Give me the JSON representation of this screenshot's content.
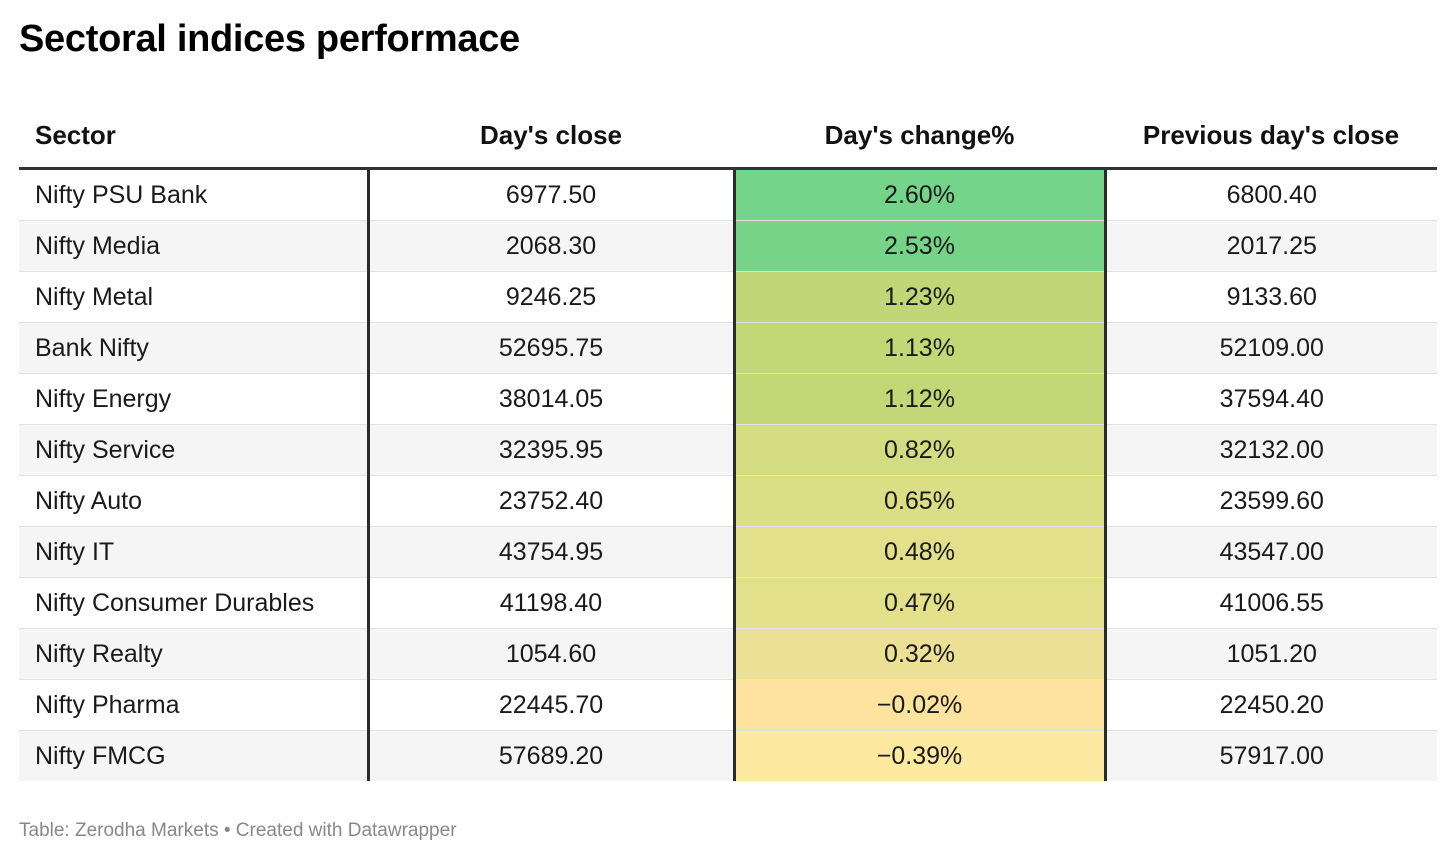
{
  "title": "Sectoral indices performace",
  "headers": [
    "Sector",
    "Day's close",
    "Day's change%",
    "Previous day's close"
  ],
  "chart_data": {
    "type": "table",
    "columns": [
      "Sector",
      "Day's close",
      "Day's change%",
      "Previous day's close"
    ],
    "rows": [
      {
        "sector": "Nifty PSU Bank",
        "close": "6977.50",
        "change": "2.60%",
        "change_value": 2.6,
        "prev": "6800.40",
        "color": "#74d48a"
      },
      {
        "sector": "Nifty Media",
        "close": "2068.30",
        "change": "2.53%",
        "change_value": 2.53,
        "prev": "2017.25",
        "color": "#76d489"
      },
      {
        "sector": "Nifty Metal",
        "close": "9246.25",
        "change": "1.23%",
        "change_value": 1.23,
        "prev": "9133.60",
        "color": "#bfd776"
      },
      {
        "sector": "Bank Nifty",
        "close": "52695.75",
        "change": "1.13%",
        "change_value": 1.13,
        "prev": "52109.00",
        "color": "#c1d877"
      },
      {
        "sector": "Nifty Energy",
        "close": "38014.05",
        "change": "1.12%",
        "change_value": 1.12,
        "prev": "37594.40",
        "color": "#c2d877"
      },
      {
        "sector": "Nifty Service",
        "close": "32395.95",
        "change": "0.82%",
        "change_value": 0.82,
        "prev": "32132.00",
        "color": "#d3dc80"
      },
      {
        "sector": "Nifty Auto",
        "close": "23752.40",
        "change": "0.65%",
        "change_value": 0.65,
        "prev": "23599.60",
        "color": "#dcde86"
      },
      {
        "sector": "Nifty IT",
        "close": "43754.95",
        "change": "0.48%",
        "change_value": 0.48,
        "prev": "43547.00",
        "color": "#e3e08b"
      },
      {
        "sector": "Nifty Consumer Durables",
        "close": "41198.40",
        "change": "0.47%",
        "change_value": 0.47,
        "prev": "41006.55",
        "color": "#e3e08c"
      },
      {
        "sector": "Nifty Realty",
        "close": "1054.60",
        "change": "0.32%",
        "change_value": 0.32,
        "prev": "1051.20",
        "color": "#ebe093"
      },
      {
        "sector": "Nifty Pharma",
        "close": "22445.70",
        "change": "−0.02%",
        "change_value": -0.02,
        "prev": "22450.20",
        "color": "#fde39e"
      },
      {
        "sector": "Nifty FMCG",
        "close": "57689.20",
        "change": "−0.39%",
        "change_value": -0.39,
        "prev": "57917.00",
        "color": "#fde9a0"
      }
    ]
  },
  "footer": "Table: Zerodha Markets • Created with Datawrapper"
}
